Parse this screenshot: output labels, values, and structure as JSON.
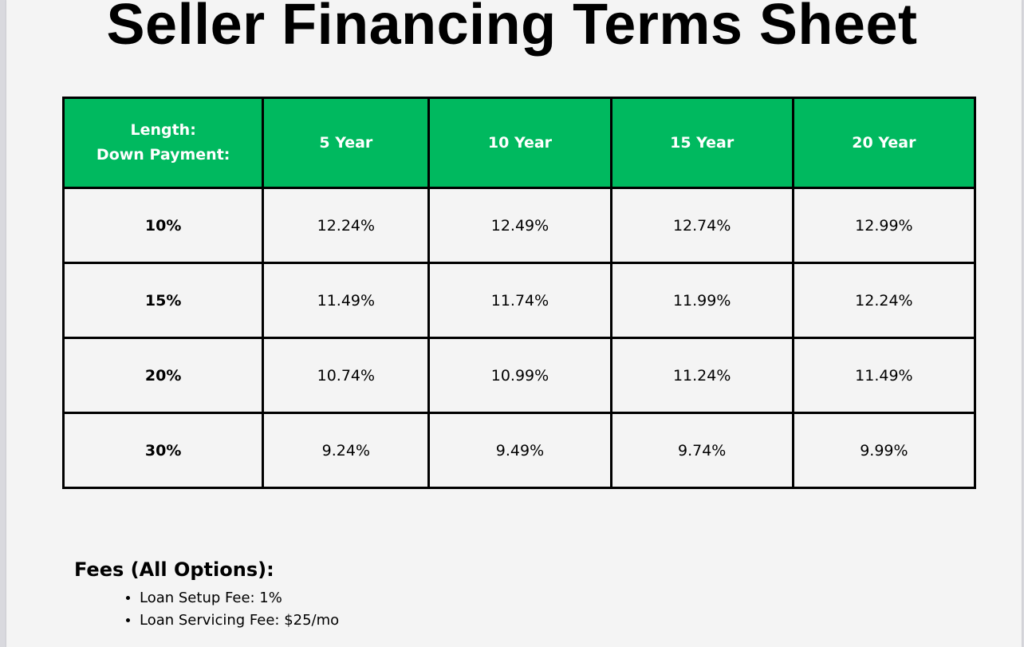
{
  "title": "Seller Financing Terms Sheet",
  "table": {
    "corner_line1": "Length:",
    "corner_line2": "Down Payment:",
    "columns": [
      "5 Year",
      "10 Year",
      "15 Year",
      "20 Year"
    ],
    "rows": [
      {
        "label": "10%",
        "values": [
          "12.24%",
          "12.49%",
          "12.74%",
          "12.99%"
        ]
      },
      {
        "label": "15%",
        "values": [
          "11.49%",
          "11.74%",
          "11.99%",
          "12.24%"
        ]
      },
      {
        "label": "20%",
        "values": [
          "10.74%",
          "10.99%",
          "11.24%",
          "11.49%"
        ]
      },
      {
        "label": "30%",
        "values": [
          "9.24%",
          "9.49%",
          "9.74%",
          "9.99%"
        ]
      }
    ]
  },
  "fees": {
    "heading": "Fees (All Options):",
    "items": [
      "Loan Setup Fee: 1%",
      "Loan Servicing Fee: $25/mo"
    ]
  },
  "colors": {
    "header_green": "#00b95f",
    "header_text": "#ffffff",
    "page_background": "#f4f4f4",
    "border": "#000000"
  }
}
